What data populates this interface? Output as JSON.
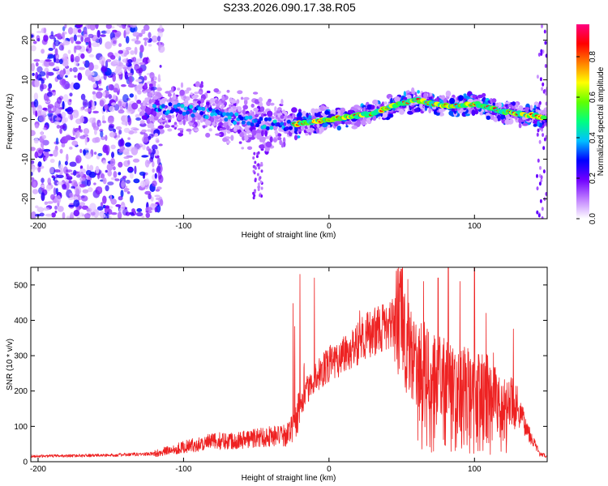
{
  "figure": {
    "title": "S233.2026.090.17.38.R05"
  },
  "chart_data": [
    {
      "type": "heatmap",
      "title": "S233.2026.090.17.38.R05",
      "xlabel": "Height of straight line (km)",
      "ylabel": "Frequency (Hz)",
      "xlim": [
        -205,
        150
      ],
      "ylim": [
        -25,
        24
      ],
      "x_ticks": [
        -200,
        -100,
        0,
        100
      ],
      "x_tick_labels": [
        "-200",
        "-100",
        "0",
        "100"
      ],
      "y_ticks": [
        -20,
        -10,
        0,
        10,
        20
      ],
      "y_tick_labels": [
        "-20",
        "-10",
        "0",
        "10",
        "20"
      ],
      "colorbar": {
        "label": "Normalized spectral amplitude",
        "range": [
          0,
          0.96
        ],
        "ticks": [
          0.0,
          0.2,
          0.4,
          0.6,
          0.8
        ],
        "tick_labels": [
          "0.0",
          "0.2",
          "0.4",
          "0.6",
          "0.8"
        ],
        "colormap": [
          "#ffffff",
          "#c080ff",
          "#7000ff",
          "#0000ff",
          "#00c0ff",
          "#00ff80",
          "#60ff00",
          "#ffff00",
          "#ff8000",
          "#ff0000",
          "#ff0080"
        ]
      },
      "ridge": {
        "description": "frequency track of main signal",
        "x": [
          -125,
          -100,
          -80,
          -60,
          -45,
          -30,
          -20,
          -10,
          0,
          10,
          20,
          30,
          40,
          50,
          60,
          70,
          80,
          90,
          100,
          110,
          120,
          130,
          140,
          148
        ],
        "y": [
          3.0,
          2.5,
          1.5,
          0.0,
          -1.0,
          -1.5,
          -1.0,
          -0.5,
          0.0,
          0.5,
          1.0,
          1.5,
          3.0,
          4.0,
          5.0,
          4.0,
          3.5,
          3.5,
          4.0,
          3.0,
          2.0,
          1.5,
          1.0,
          0.5
        ]
      },
      "noise_region": {
        "x_range": [
          -205,
          -125
        ],
        "y_range": [
          -25,
          24
        ]
      }
    },
    {
      "type": "line",
      "title": "",
      "xlabel": "Height of straight line (km)",
      "ylabel": "SNR (10 * v/v)",
      "xlim": [
        -205,
        150
      ],
      "ylim": [
        0,
        550
      ],
      "x_ticks": [
        -200,
        -100,
        0,
        100
      ],
      "x_tick_labels": [
        "-200",
        "-100",
        "0",
        "100"
      ],
      "y_ticks": [
        0,
        100,
        200,
        300,
        400,
        500
      ],
      "y_tick_labels": [
        "0",
        "100",
        "200",
        "300",
        "400",
        "500"
      ],
      "series": [
        {
          "name": "SNR",
          "color": "#ee2222",
          "envelope_x": [
            -205,
            -150,
            -120,
            -100,
            -80,
            -60,
            -40,
            -30,
            -25,
            -20,
            -15,
            -10,
            -5,
            0,
            10,
            20,
            30,
            40,
            50,
            55,
            60,
            70,
            80,
            90,
            100,
            110,
            120,
            130,
            140,
            145,
            150
          ],
          "envelope_y": [
            15,
            18,
            22,
            40,
            55,
            60,
            70,
            70,
            90,
            150,
            200,
            230,
            250,
            270,
            300,
            330,
            360,
            380,
            390,
            300,
            280,
            250,
            230,
            220,
            210,
            200,
            180,
            140,
            60,
            20,
            15
          ],
          "spikes": [
            {
              "x": -20,
              "y": 530
            },
            {
              "x": -10,
              "y": 520
            },
            {
              "x": 50,
              "y": 545
            },
            {
              "x": 65,
              "y": 510
            },
            {
              "x": 75,
              "y": 520
            },
            {
              "x": 82,
              "y": 550
            },
            {
              "x": 90,
              "y": 510
            },
            {
              "x": 100,
              "y": 550
            },
            {
              "x": 108,
              "y": 420
            }
          ]
        }
      ]
    }
  ]
}
